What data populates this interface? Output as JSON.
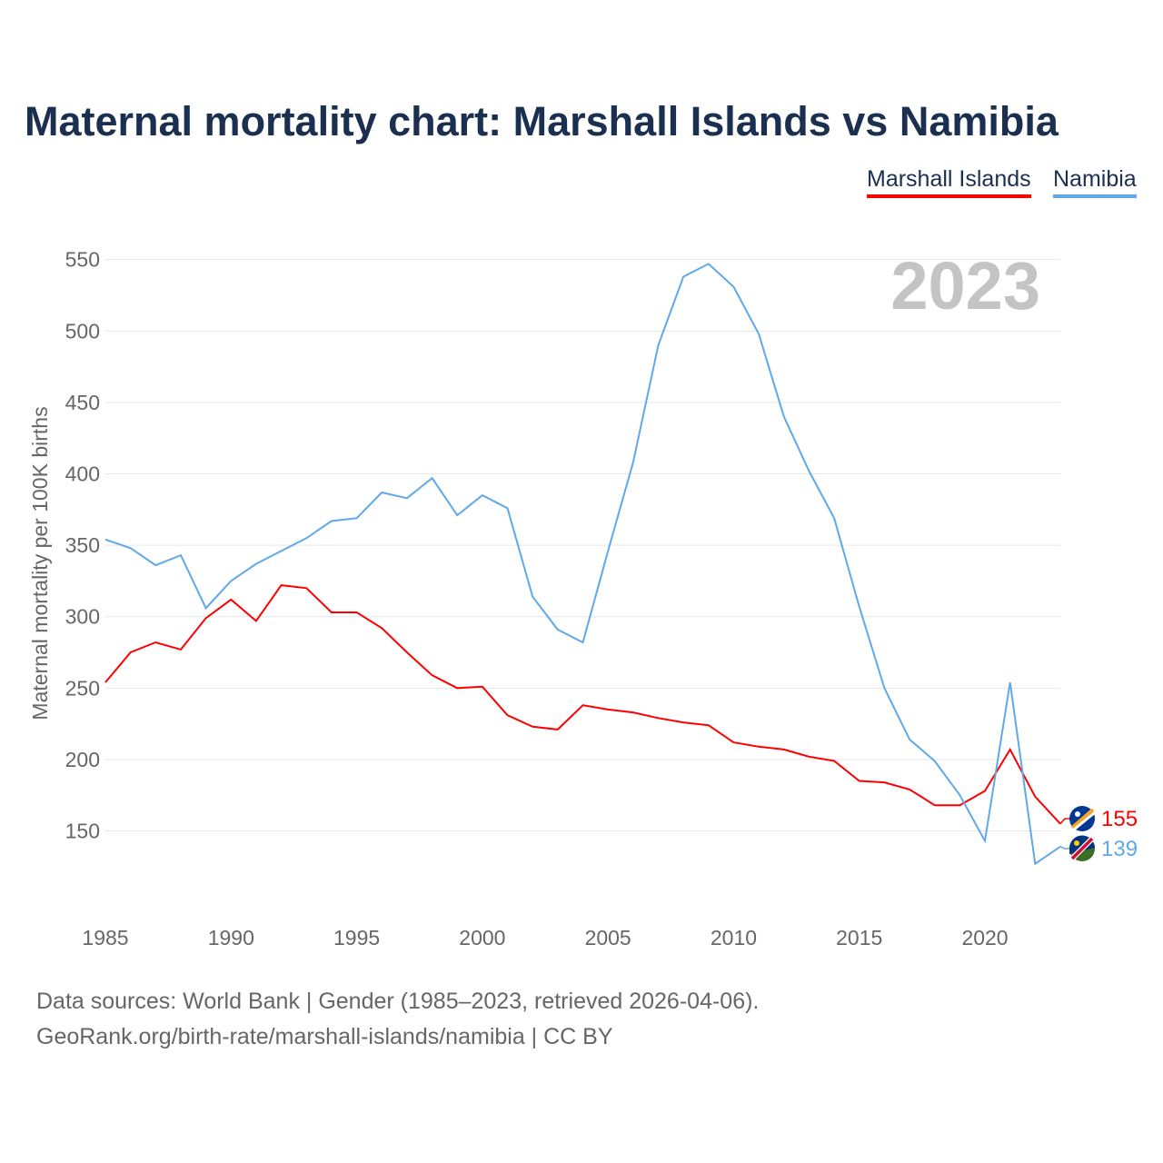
{
  "chart_data": {
    "type": "line",
    "title": "Maternal mortality chart: Marshall Islands vs Namibia",
    "ylabel": "Maternal mortality per 100K births",
    "xlabel": "",
    "year_label": "2023",
    "ylim": [
      95,
      560
    ],
    "xlim": [
      1985,
      2023
    ],
    "yticks": [
      150,
      200,
      250,
      300,
      350,
      400,
      450,
      500,
      550
    ],
    "xticks": [
      1985,
      1990,
      1995,
      2000,
      2005,
      2010,
      2015,
      2020
    ],
    "grid": true,
    "legend_position": "top-right",
    "x": [
      1985,
      1986,
      1987,
      1988,
      1989,
      1990,
      1991,
      1992,
      1993,
      1994,
      1995,
      1996,
      1997,
      1998,
      1999,
      2000,
      2001,
      2002,
      2003,
      2004,
      2005,
      2006,
      2007,
      2008,
      2009,
      2010,
      2011,
      2012,
      2013,
      2014,
      2015,
      2016,
      2017,
      2018,
      2019,
      2020,
      2021,
      2022,
      2023
    ],
    "series": [
      {
        "name": "Marshall Islands",
        "color": "#ff0000",
        "end_label": "155",
        "values": [
          254,
          275,
          282,
          277,
          299,
          312,
          297,
          322,
          320,
          303,
          303,
          292,
          275,
          259,
          250,
          251,
          231,
          223,
          221,
          238,
          235,
          233,
          229,
          226,
          224,
          212,
          209,
          207,
          202,
          199,
          185,
          184,
          179,
          168,
          168,
          178,
          207,
          174,
          155
        ]
      },
      {
        "name": "Namibia",
        "color": "#5fa8ea",
        "end_label": "139",
        "values": [
          354,
          348,
          336,
          343,
          306,
          325,
          337,
          346,
          355,
          367,
          369,
          387,
          383,
          397,
          371,
          385,
          376,
          314,
          291,
          282,
          346,
          408,
          490,
          538,
          547,
          531,
          498,
          440,
          402,
          369,
          307,
          250,
          214,
          199,
          175,
          143,
          254,
          127,
          139
        ]
      }
    ]
  },
  "footer": {
    "source": "Data sources: World Bank | Gender (1985–2023, retrieved 2026-04-06).",
    "url": "GeoRank.org/birth-rate/marshall-islands/namibia | CC BY"
  }
}
